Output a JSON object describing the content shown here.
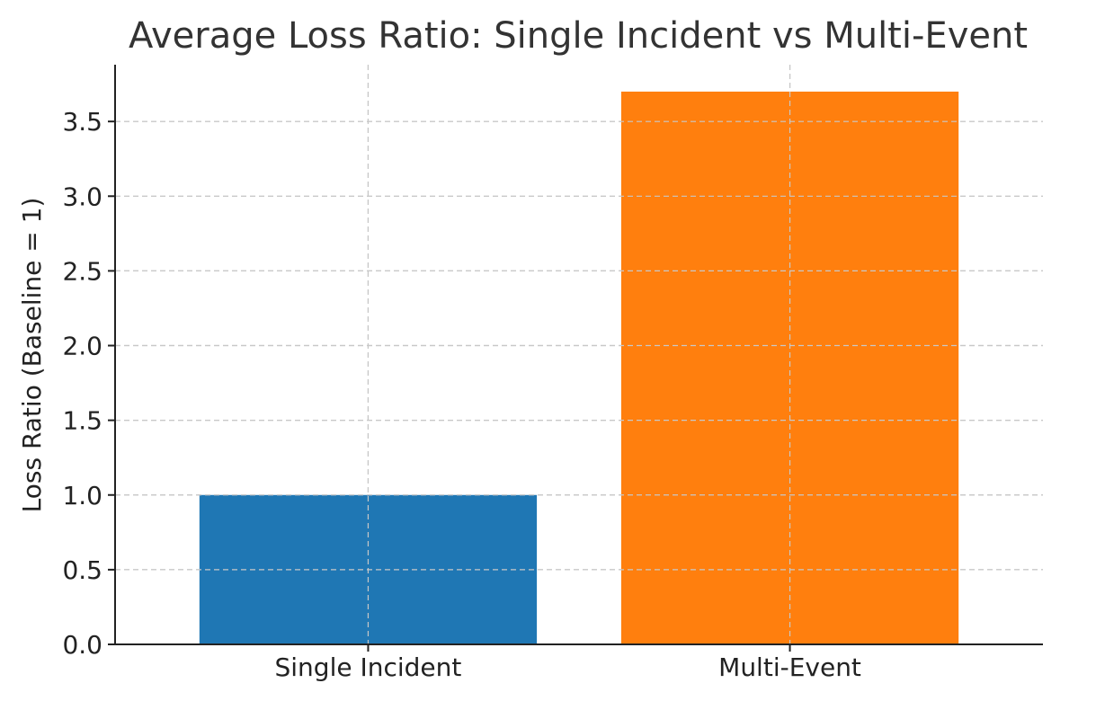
{
  "chart_data": {
    "type": "bar",
    "title": "Average Loss Ratio: Single Incident vs Multi-Event",
    "xlabel": "",
    "ylabel": "Loss Ratio (Baseline = 1)",
    "categories": [
      "Single Incident",
      "Multi-Event"
    ],
    "values": [
      1.0,
      3.7
    ],
    "colors": [
      "#1f77b4",
      "#ff7f0e"
    ],
    "ylim": [
      0,
      3.88
    ],
    "yticks": [
      "0.0",
      "0.5",
      "1.0",
      "1.5",
      "2.0",
      "2.5",
      "3.0",
      "3.5"
    ],
    "grid": true
  }
}
